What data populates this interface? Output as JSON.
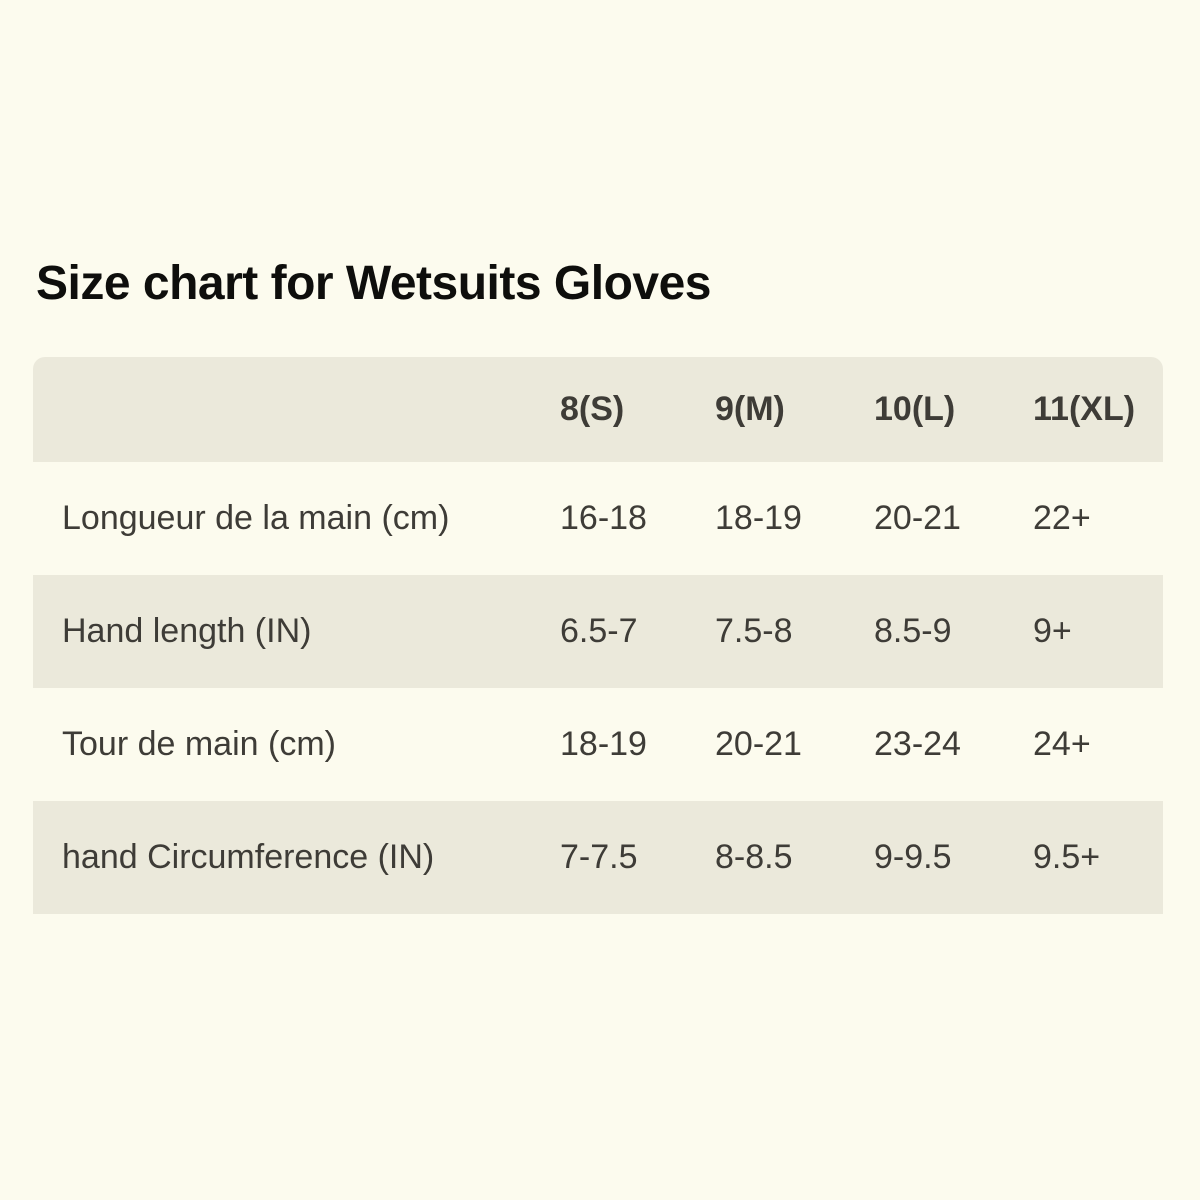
{
  "title": "Size chart for Wetsuits Gloves",
  "table": {
    "columns": [
      "",
      "8(S)",
      "9(M)",
      "10(L)",
      "11(XL)"
    ],
    "rows": [
      {
        "label": "Longueur de la main (cm)",
        "values": [
          "16-18",
          "18-19",
          "20-21",
          "22+"
        ]
      },
      {
        "label": "Hand length (IN)",
        "values": [
          "6.5-7",
          "7.5-8",
          "8.5-9",
          "9+"
        ]
      },
      {
        "label": "Tour de main (cm)",
        "values": [
          "18-19",
          "20-21",
          "23-24",
          "24+"
        ]
      },
      {
        "label": "hand Circumference (IN)",
        "values": [
          "7-7.5",
          "8-8.5",
          "9-9.5",
          "9.5+"
        ]
      }
    ]
  },
  "chart_data": {
    "type": "table",
    "title": "Size chart for Wetsuits Gloves",
    "columns": [
      "8(S)",
      "9(M)",
      "10(L)",
      "11(XL)"
    ],
    "rows": [
      {
        "label": "Longueur de la main (cm)",
        "values": [
          "16-18",
          "18-19",
          "20-21",
          "22+"
        ]
      },
      {
        "label": "Hand length (IN)",
        "values": [
          "6.5-7",
          "7.5-8",
          "8.5-9",
          "9+"
        ]
      },
      {
        "label": "Tour de main (cm)",
        "values": [
          "18-19",
          "20-21",
          "23-24",
          "24+"
        ]
      },
      {
        "label": "hand Circumference (IN)",
        "values": [
          "7-7.5",
          "8-8.5",
          "9-9.5",
          "9.5+"
        ]
      }
    ],
    "layout": {
      "striped": true,
      "header_background": "#EBE9DB",
      "first_column_is_row_label": true
    }
  },
  "colors": {
    "background": "#FCFBEE",
    "band": "#EBE9DB",
    "text": "#3E3C37",
    "title": "#0E0E0C"
  }
}
